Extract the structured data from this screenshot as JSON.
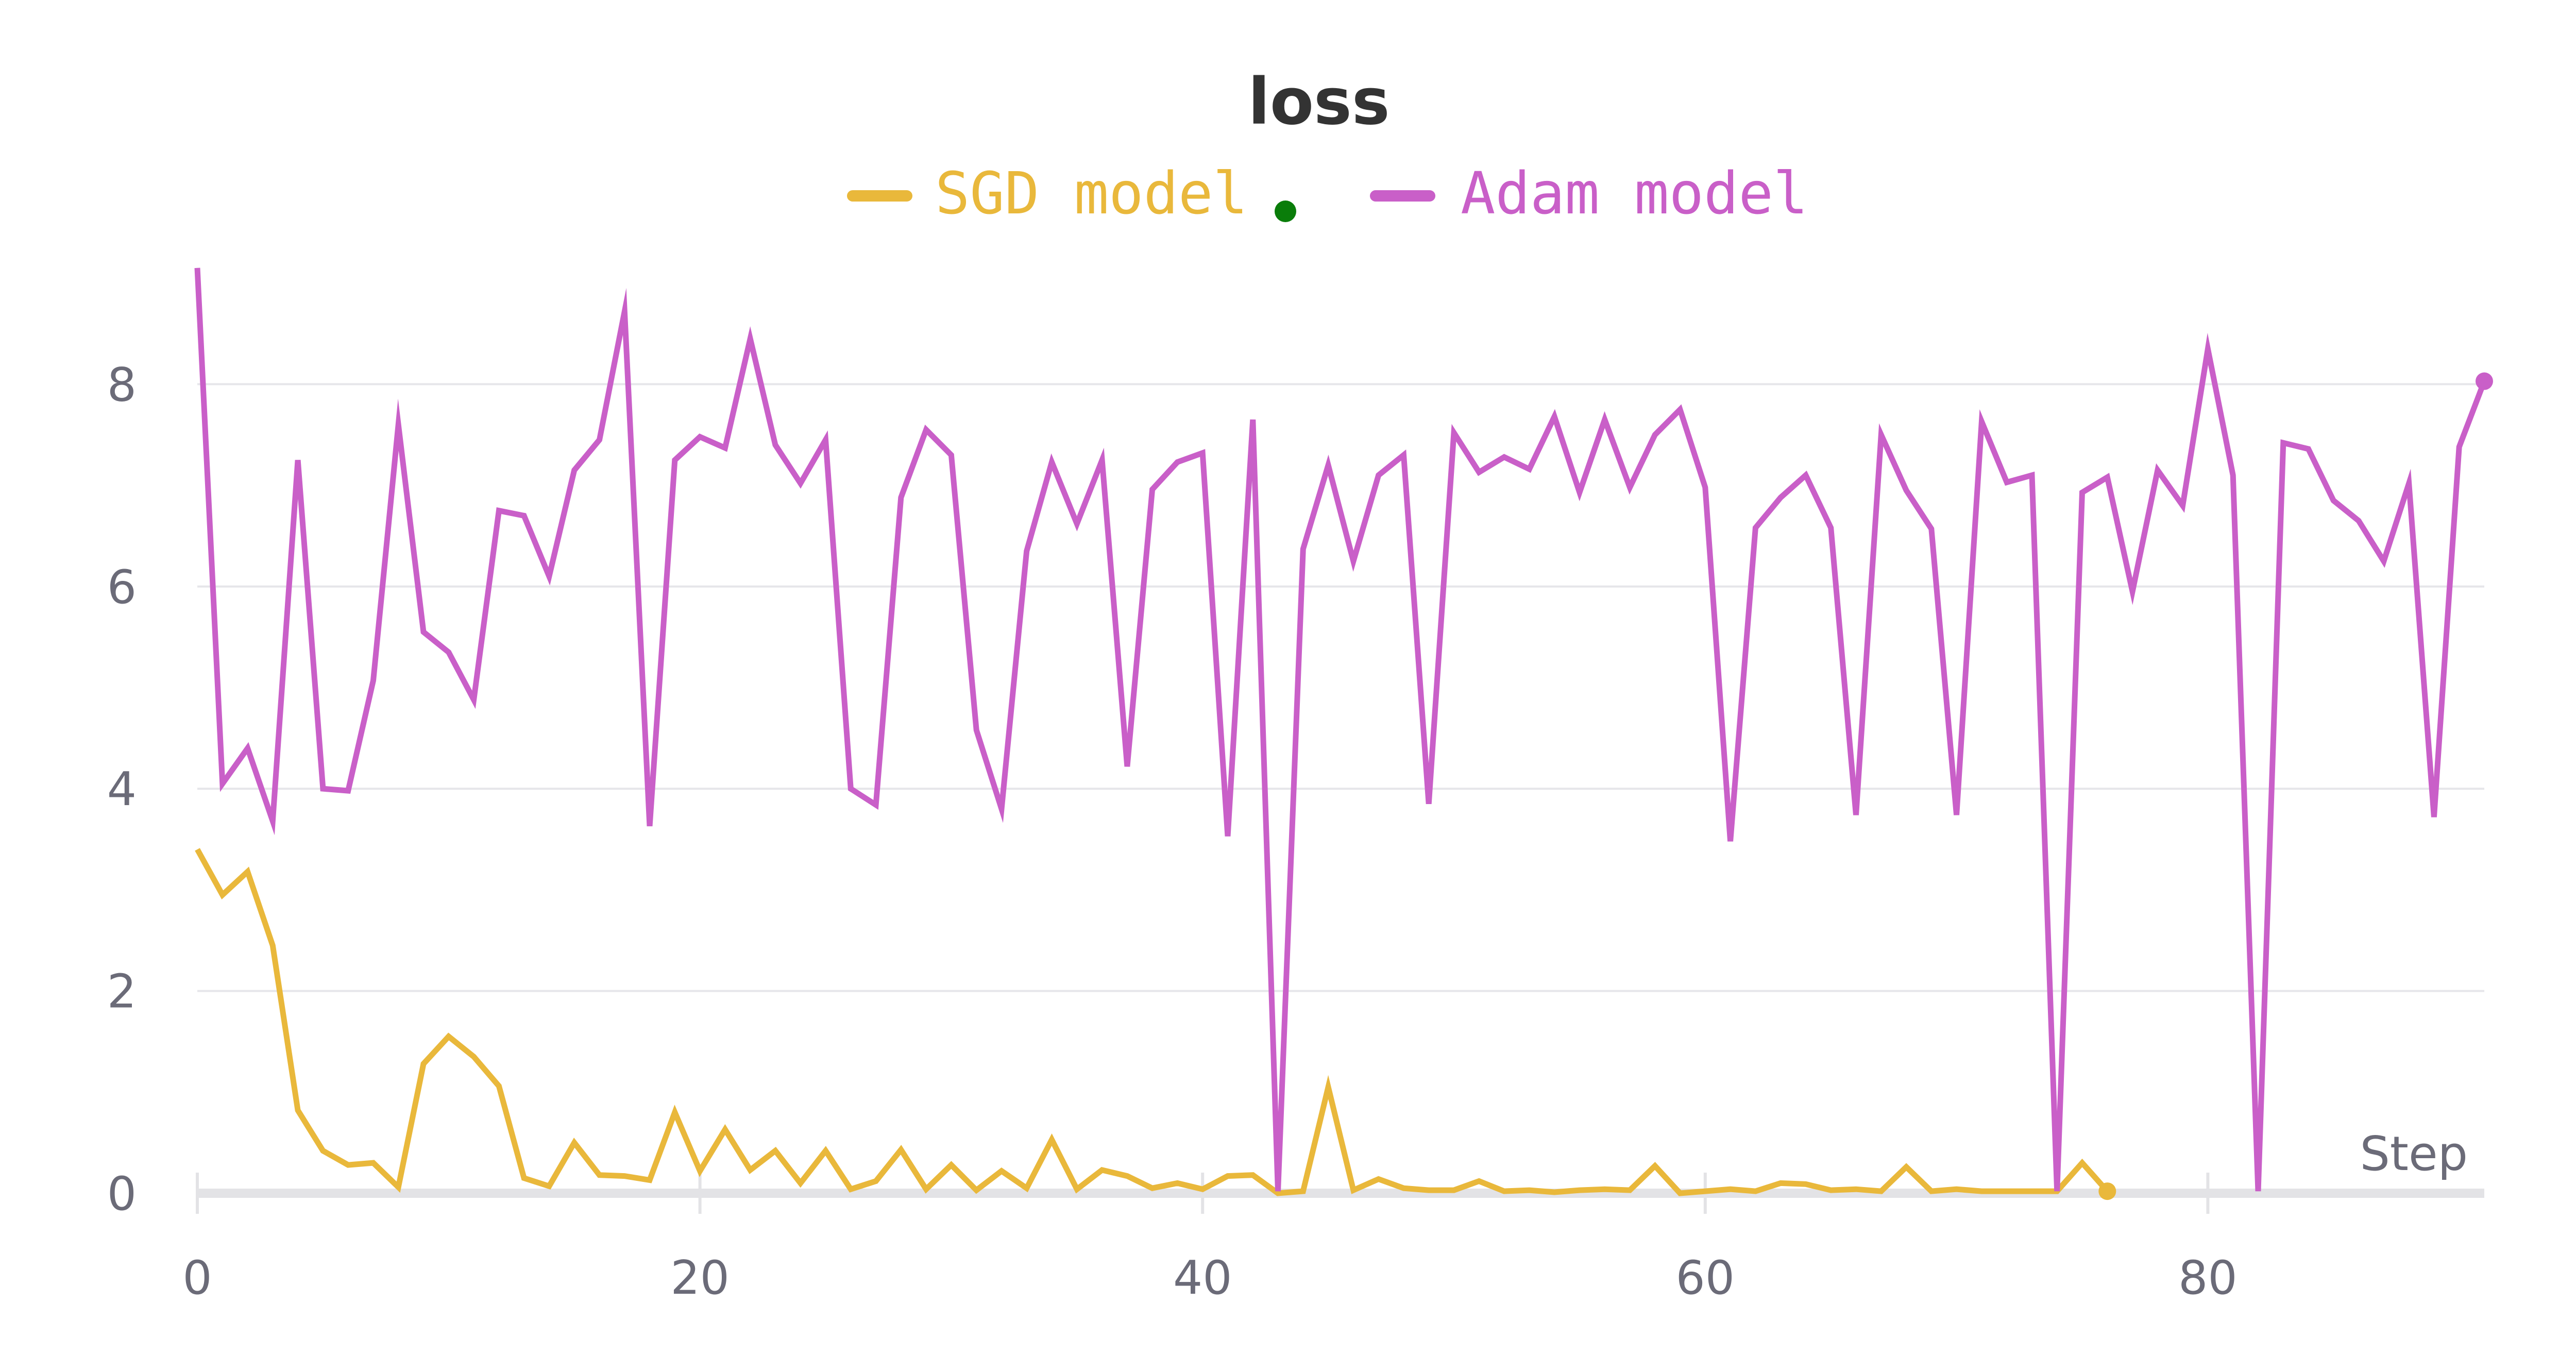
{
  "chart_data": {
    "type": "line",
    "title": "loss",
    "xlabel": "Step",
    "ylabel": "",
    "xlim": [
      0,
      91
    ],
    "ylim": [
      0,
      9.2
    ],
    "xticks": [
      0,
      20,
      40,
      60,
      80
    ],
    "yticks": [
      0,
      2,
      4,
      6,
      8
    ],
    "grid": true,
    "legend_position": "top-center",
    "series": [
      {
        "name": "SGD model",
        "color": "#e9b83b",
        "x": [
          0,
          1,
          2,
          3,
          4,
          5,
          6,
          7,
          8,
          9,
          10,
          11,
          12,
          13,
          14,
          15,
          16,
          17,
          18,
          19,
          20,
          21,
          22,
          23,
          24,
          25,
          26,
          27,
          28,
          29,
          30,
          31,
          32,
          33,
          34,
          35,
          36,
          37,
          38,
          39,
          40,
          41,
          42,
          43,
          44,
          45,
          46,
          47,
          48,
          49,
          50,
          51,
          52,
          53,
          54,
          55,
          56,
          57,
          58,
          59,
          60,
          61,
          62,
          63,
          64,
          65,
          66,
          67,
          68,
          69,
          70,
          71,
          72,
          73,
          74,
          75,
          76
        ],
        "values": [
          3.4,
          2.95,
          3.18,
          2.45,
          0.82,
          0.42,
          0.28,
          0.3,
          0.06,
          1.28,
          1.55,
          1.35,
          1.06,
          0.15,
          0.07,
          0.5,
          0.18,
          0.17,
          0.13,
          0.8,
          0.22,
          0.63,
          0.23,
          0.42,
          0.1,
          0.42,
          0.04,
          0.12,
          0.43,
          0.04,
          0.28,
          0.03,
          0.22,
          0.05,
          0.53,
          0.04,
          0.23,
          0.17,
          0.05,
          0.1,
          0.04,
          0.17,
          0.18,
          0.0,
          0.02,
          1.05,
          0.03,
          0.14,
          0.05,
          0.03,
          0.03,
          0.12,
          0.02,
          0.03,
          0.01,
          0.03,
          0.04,
          0.03,
          0.27,
          0.0,
          0.02,
          0.04,
          0.02,
          0.1,
          0.09,
          0.03,
          0.04,
          0.02,
          0.26,
          0.02,
          0.04,
          0.02,
          0.02,
          0.02,
          0.02,
          0.3,
          0.02
        ]
      },
      {
        "name": "Adam model",
        "color": "#c95fc8",
        "x": [
          0,
          1,
          2,
          3,
          4,
          5,
          6,
          7,
          8,
          9,
          10,
          11,
          12,
          13,
          14,
          15,
          16,
          17,
          18,
          19,
          20,
          21,
          22,
          23,
          24,
          25,
          26,
          27,
          28,
          29,
          30,
          31,
          32,
          33,
          34,
          35,
          36,
          37,
          38,
          39,
          40,
          41,
          42,
          43,
          44,
          45,
          46,
          47,
          48,
          49,
          50,
          51,
          52,
          53,
          54,
          55,
          56,
          57,
          58,
          59,
          60,
          61,
          62,
          63,
          64,
          65,
          66,
          67,
          68,
          69,
          70,
          71,
          72,
          73,
          74,
          75,
          76,
          77,
          78,
          79,
          80,
          81,
          82,
          83,
          84,
          85,
          86,
          87,
          88,
          89,
          90,
          91
        ],
        "values": [
          9.15,
          4.05,
          4.4,
          3.68,
          7.25,
          4.0,
          3.98,
          5.07,
          7.6,
          5.55,
          5.35,
          4.88,
          6.75,
          6.7,
          6.1,
          7.15,
          7.45,
          8.72,
          3.63,
          7.25,
          7.48,
          7.37,
          8.45,
          7.4,
          7.02,
          7.45,
          4.0,
          3.84,
          6.88,
          7.55,
          7.3,
          4.58,
          3.8,
          6.35,
          7.23,
          6.62,
          7.25,
          4.22,
          6.96,
          7.23,
          7.32,
          3.53,
          7.65,
          0.02,
          6.37,
          7.2,
          6.25,
          7.1,
          7.3,
          3.85,
          7.52,
          7.13,
          7.28,
          7.16,
          7.68,
          6.93,
          7.65,
          6.98,
          7.5,
          7.75,
          6.98,
          3.48,
          6.58,
          6.88,
          7.1,
          6.58,
          3.74,
          7.5,
          6.95,
          6.57,
          3.74,
          7.63,
          7.03,
          7.1,
          0.02,
          6.93,
          7.08,
          5.95,
          7.15,
          6.8,
          8.35,
          7.1,
          0.02,
          7.42,
          7.36,
          6.85,
          6.65,
          6.25,
          7.02,
          3.72,
          7.38,
          8.03
        ]
      }
    ]
  }
}
